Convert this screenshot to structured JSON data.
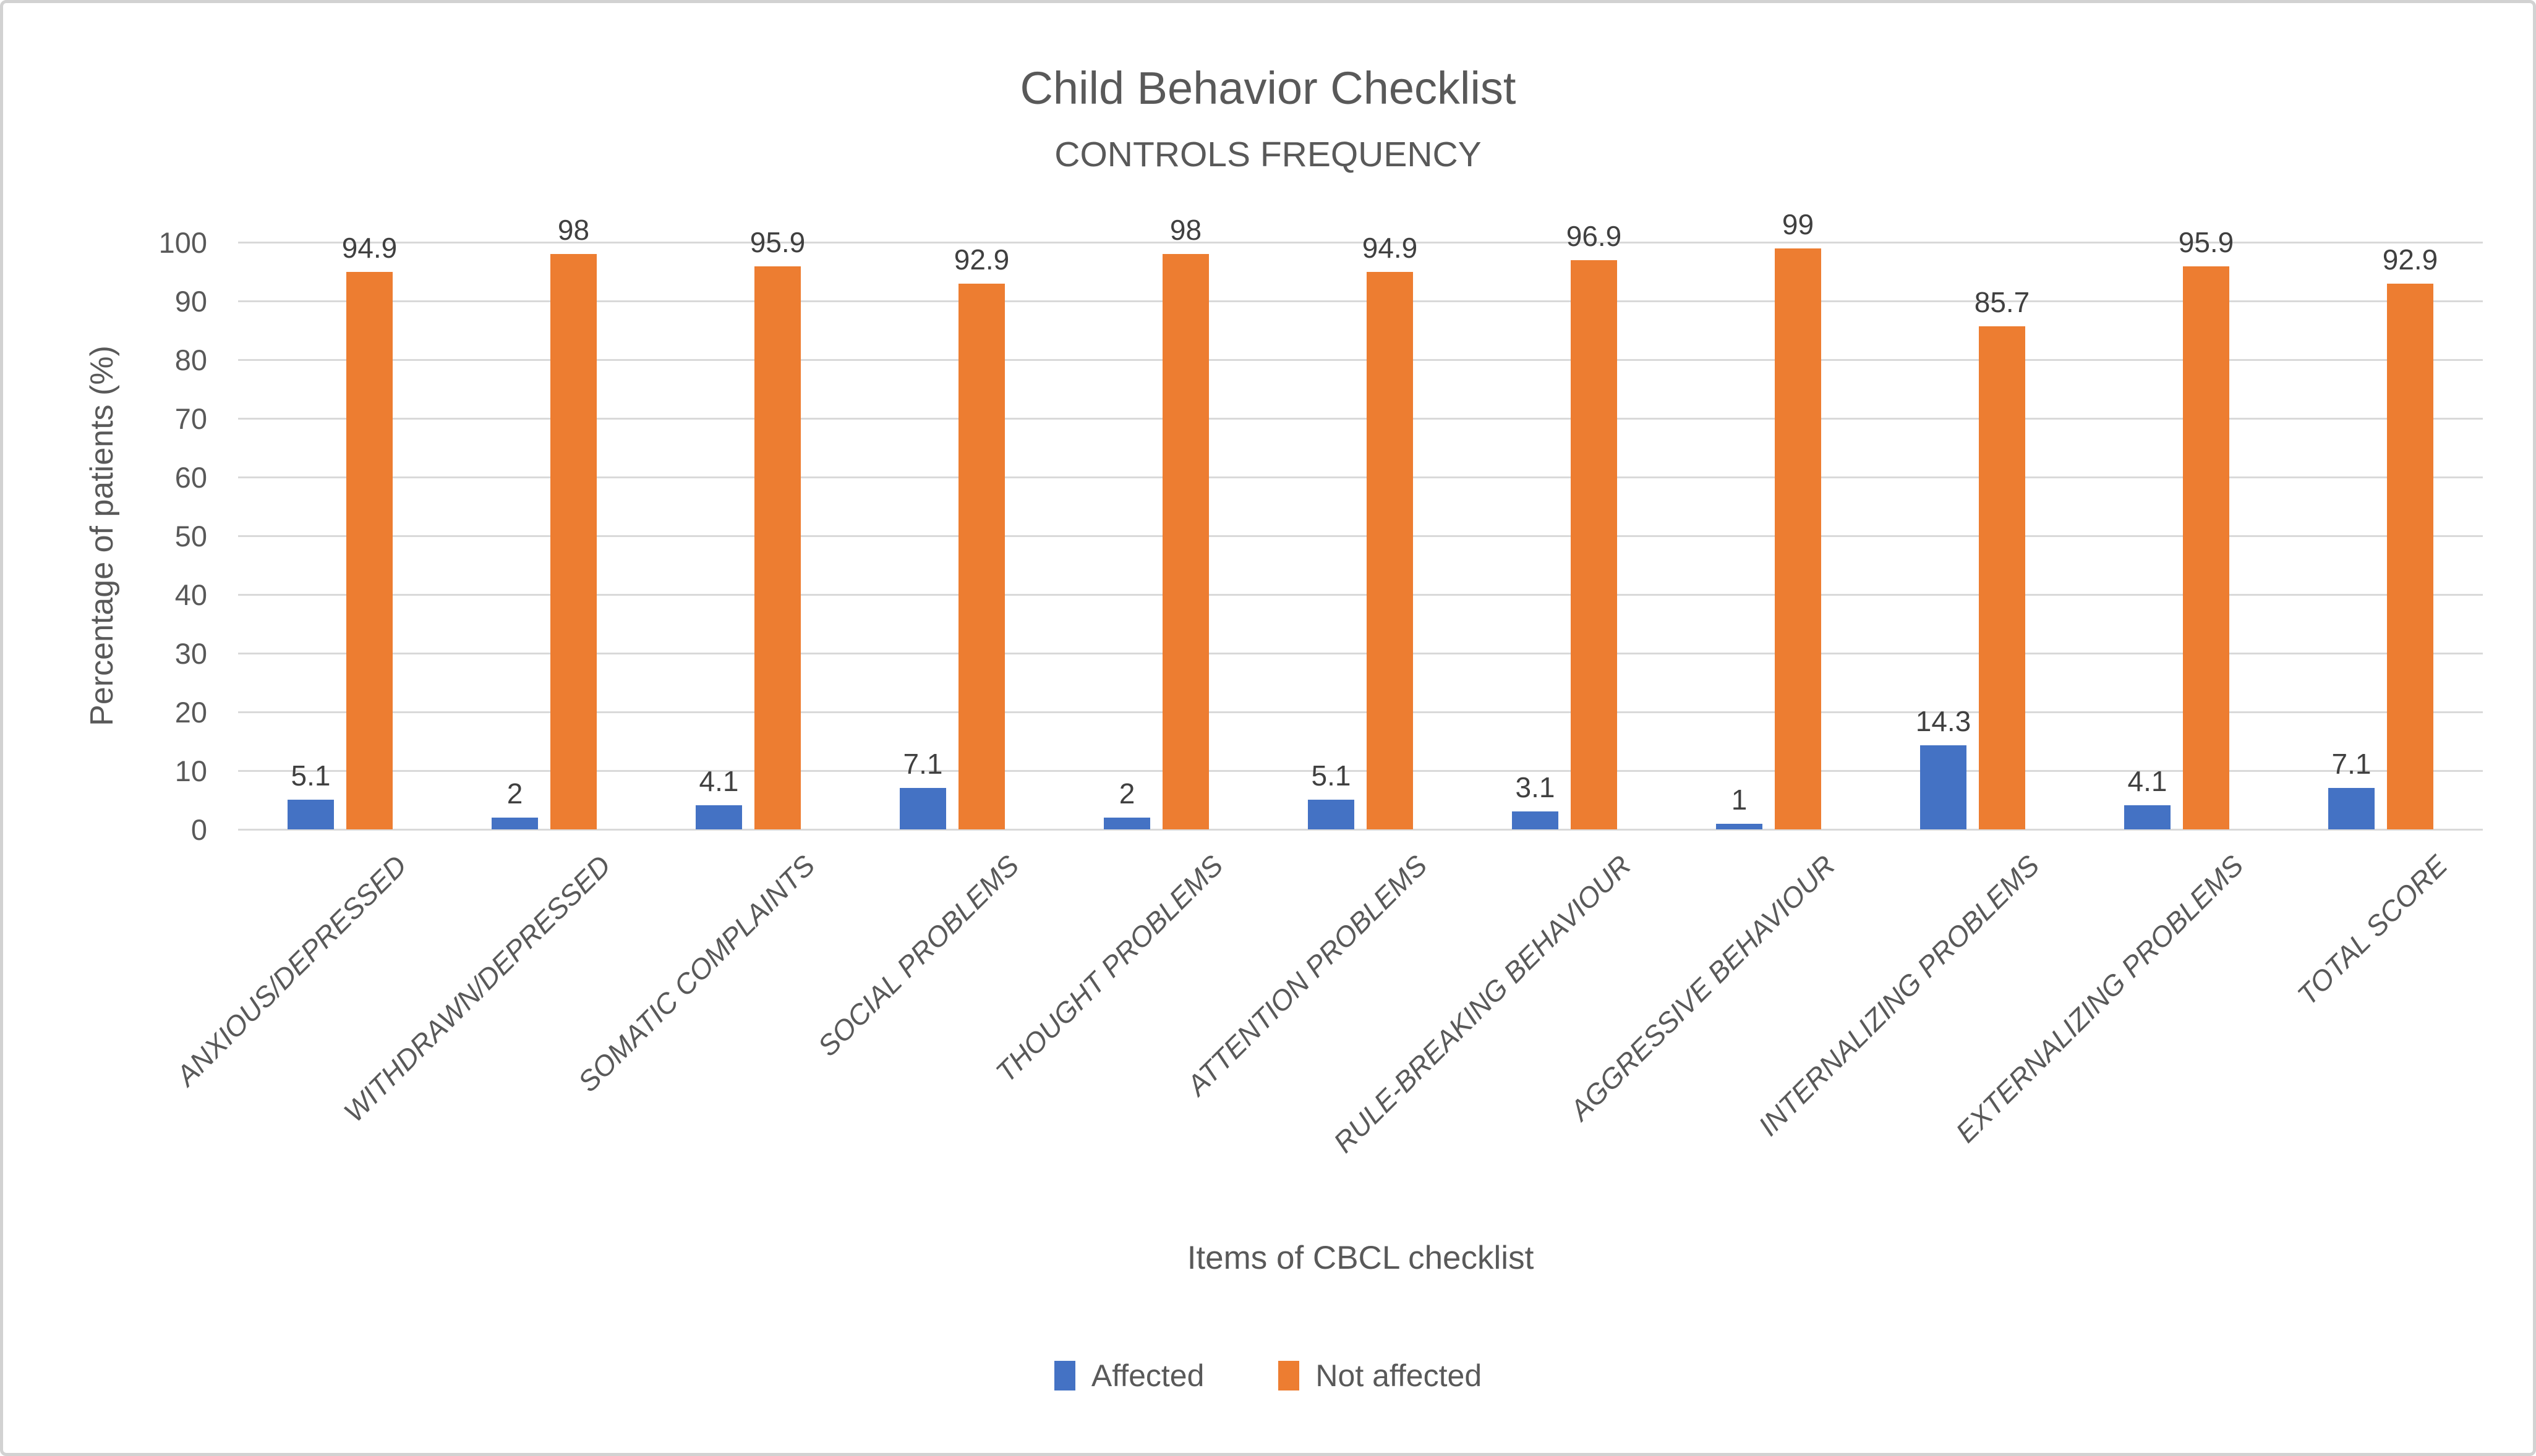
{
  "chart_data": {
    "type": "bar",
    "title": "Child Behavior Checklist",
    "subtitle": "CONTROLS FREQUENCY",
    "categories": [
      "ANXIOUS/DEPRESSED",
      "WITHDRAWN/DEPRESSED",
      "SOMATIC COMPLAINTS",
      "SOCIAL PROBLEMS",
      "THOUGHT PROBLEMS",
      "ATTENTION PROBLEMS",
      "RULE-BREAKING BEHAVIOUR",
      "AGGRESSIVE BEHAVIOUR",
      "INTERNALIZING PROBLEMS",
      "EXTERNALIZING PROBLEMS",
      "TOTAL SCORE"
    ],
    "series": [
      {
        "name": "Affected",
        "color": "#4472C4",
        "values": [
          5.1,
          2,
          4.1,
          7.1,
          2,
          5.1,
          3.1,
          1,
          14.3,
          4.1,
          7.1
        ]
      },
      {
        "name": "Not affected",
        "color": "#ED7D31",
        "values": [
          94.9,
          98,
          95.9,
          92.9,
          98,
          94.9,
          96.9,
          99,
          85.7,
          95.9,
          92.9
        ]
      }
    ],
    "xlabel": "Items of CBCL checklist",
    "ylabel": "Percentage of patients (%)",
    "ylim": [
      0,
      100
    ],
    "yticks": [
      0,
      10,
      20,
      30,
      40,
      50,
      60,
      70,
      80,
      90,
      100
    ],
    "grid": true,
    "legend_position": "bottom",
    "bar_value_labels": true,
    "styles": {
      "gridline_color": "#D9D9D9",
      "text_color": "#595959",
      "value_label_color": "#404040"
    }
  }
}
